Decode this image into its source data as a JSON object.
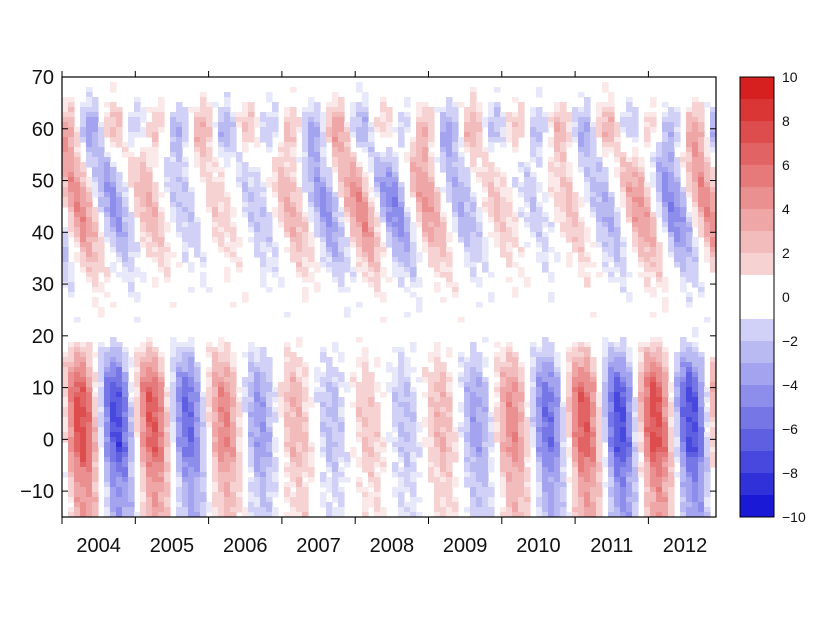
{
  "chart_data": {
    "type": "heatmap",
    "title": "",
    "xlabel": "",
    "ylabel": "",
    "x_tick_labels": [
      "2004",
      "2005",
      "2006",
      "2007",
      "2008",
      "2009",
      "2010",
      "2011",
      "2012"
    ],
    "y_tick_labels": [
      "70",
      "60",
      "50",
      "40",
      "30",
      "20",
      "10",
      "0",
      "−10"
    ],
    "ylim": [
      -15,
      70
    ],
    "colorbar": {
      "tick_labels": [
        "10",
        "8",
        "6",
        "4",
        "2",
        "0",
        "−2",
        "−4",
        "−6",
        "−8",
        "−10"
      ],
      "range": [
        -10,
        10
      ],
      "levels": [
        -10,
        -9,
        -8,
        -7,
        -6,
        -5,
        -4,
        -3,
        -2,
        -1,
        0,
        1,
        2,
        3,
        4,
        5,
        6,
        7,
        8,
        9,
        10
      ],
      "colors": {
        "max": "#d62020",
        "mid": "#ffffff",
        "min": "#1a1ad6"
      }
    },
    "contour_line_color": "#333333",
    "features": {
      "description_free": true,
      "low_lat_band": {
        "y_range": [
          -15,
          17
        ],
        "alternating_sign": true
      },
      "mid_lat_band": {
        "y_range": [
          20,
          65
        ],
        "alternating_sign": true
      }
    }
  }
}
